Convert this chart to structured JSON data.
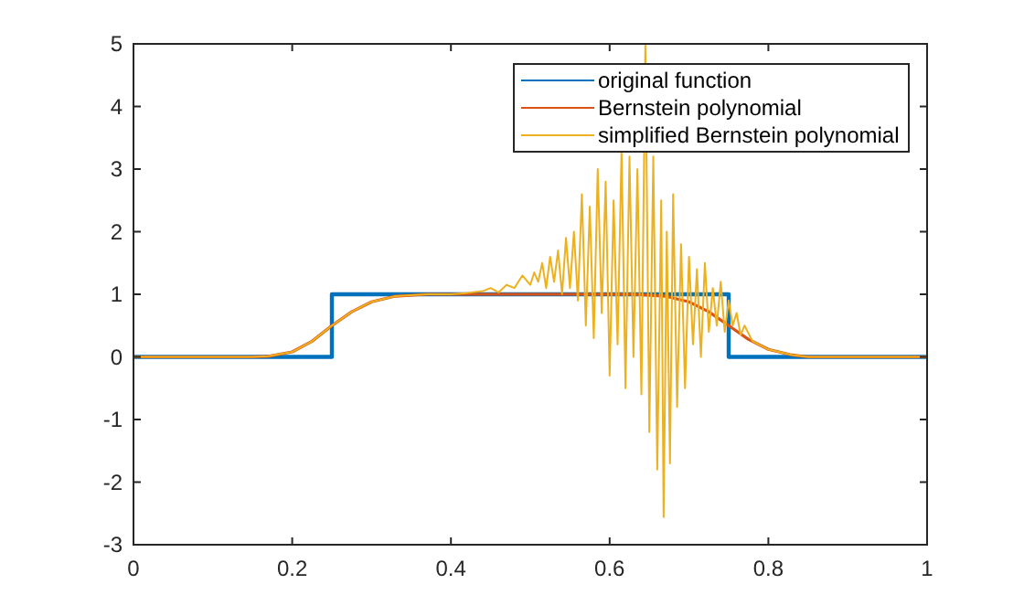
{
  "chart_data": {
    "type": "line",
    "xlim": [
      0,
      1
    ],
    "ylim": [
      -3,
      5
    ],
    "xticks": [
      0,
      0.2,
      0.4,
      0.6,
      0.8,
      1
    ],
    "yticks": [
      -3,
      -2,
      -1,
      0,
      1,
      2,
      3,
      4,
      5
    ],
    "grid": false,
    "legend": "top right",
    "marker": "none",
    "line_style": "solid",
    "series": [
      {
        "name": "original function",
        "color": "#0072bd",
        "x": [
          0,
          0.25,
          0.25,
          0.75,
          0.75,
          1
        ],
        "values": [
          0,
          0,
          1,
          1,
          0,
          0
        ]
      },
      {
        "name": "Bernstein polynomial",
        "color": "#d95319",
        "x": [
          0,
          0.15,
          0.17,
          0.2,
          0.225,
          0.25,
          0.275,
          0.3,
          0.33,
          0.37,
          0.63,
          0.67,
          0.7,
          0.725,
          0.75,
          0.775,
          0.8,
          0.83,
          0.85,
          1
        ],
        "values": [
          0,
          0,
          0.01,
          0.08,
          0.25,
          0.5,
          0.72,
          0.88,
          0.97,
          1,
          1,
          0.97,
          0.88,
          0.72,
          0.5,
          0.28,
          0.12,
          0.03,
          0,
          0
        ]
      },
      {
        "name": "simplified Bernstein polynomial",
        "color": "#edb120",
        "x": [
          0,
          0.15,
          0.17,
          0.2,
          0.225,
          0.25,
          0.275,
          0.3,
          0.33,
          0.37,
          0.4,
          0.42,
          0.44,
          0.45,
          0.46,
          0.47,
          0.48,
          0.49,
          0.5,
          0.505,
          0.51,
          0.515,
          0.52,
          0.525,
          0.53,
          0.535,
          0.54,
          0.545,
          0.55,
          0.555,
          0.56,
          0.565,
          0.57,
          0.575,
          0.58,
          0.585,
          0.59,
          0.595,
          0.6,
          0.605,
          0.61,
          0.615,
          0.62,
          0.625,
          0.63,
          0.635,
          0.64,
          0.645,
          0.65,
          0.655,
          0.66,
          0.665,
          0.668,
          0.672,
          0.676,
          0.68,
          0.685,
          0.69,
          0.695,
          0.7,
          0.705,
          0.71,
          0.715,
          0.72,
          0.725,
          0.73,
          0.735,
          0.74,
          0.745,
          0.75,
          0.755,
          0.76,
          0.765,
          0.77,
          0.78,
          0.8,
          0.83,
          0.85,
          1
        ],
        "values": [
          0,
          0,
          0.01,
          0.08,
          0.25,
          0.5,
          0.72,
          0.88,
          0.97,
          1,
          1,
          1.02,
          1.05,
          1.1,
          1.03,
          1.15,
          1.1,
          1.3,
          1.15,
          1.35,
          1.2,
          1.5,
          1.1,
          1.6,
          1.2,
          1.7,
          1,
          1.9,
          1.1,
          2,
          0.9,
          2.6,
          0.5,
          2.4,
          0.3,
          3,
          0.7,
          2.8,
          -0.3,
          2.5,
          0.2,
          3.3,
          -0.5,
          3.2,
          0,
          3,
          -0.6,
          5,
          -1.2,
          3.2,
          -1.8,
          2.5,
          -2.56,
          2,
          -1.7,
          2.6,
          -0.8,
          1.8,
          -0.5,
          1.6,
          0.2,
          1.4,
          0,
          1.5,
          0.4,
          1.1,
          0.5,
          1.2,
          0.4,
          0.9,
          0.5,
          0.7,
          0.35,
          0.5,
          0.25,
          0.12,
          0.03,
          0,
          0
        ]
      }
    ]
  }
}
